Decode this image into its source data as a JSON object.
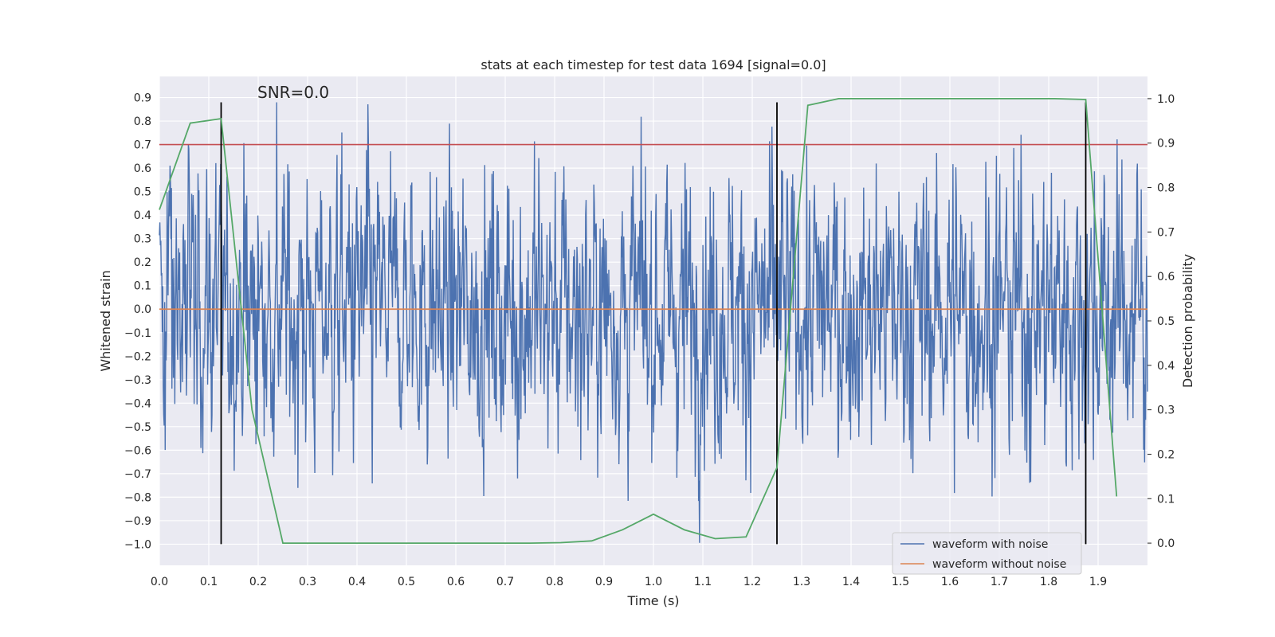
{
  "chart_data": {
    "type": "line",
    "title": "stats at each timestep for test data 1694 [signal=0.0]",
    "xlabel": "Time (s)",
    "ylabel": "Whitened strain",
    "y2label": "Detection probability",
    "xlim": [
      0.0,
      2.0
    ],
    "ylim": [
      -1.09,
      0.99
    ],
    "y2lim": [
      -0.05,
      1.05
    ],
    "xticks": [
      "0.0",
      "0.1",
      "0.2",
      "0.3",
      "0.4",
      "0.5",
      "0.6",
      "0.7",
      "0.8",
      "0.9",
      "1.0",
      "1.1",
      "1.2",
      "1.3",
      "1.4",
      "1.5",
      "1.6",
      "1.7",
      "1.8",
      "1.9"
    ],
    "yticks": [
      "0.9",
      "0.8",
      "0.7",
      "0.6",
      "0.5",
      "0.4",
      "0.3",
      "0.2",
      "0.1",
      "0.0",
      "−0.1",
      "−0.2",
      "−0.3",
      "−0.4",
      "−0.5",
      "−0.6",
      "−0.7",
      "−0.8",
      "−0.9",
      "−1.0"
    ],
    "y2ticks": [
      "1.0",
      "0.9",
      "0.8",
      "0.7",
      "0.6",
      "0.5",
      "0.4",
      "0.3",
      "0.2",
      "0.1",
      "0.0"
    ],
    "annotation": "SNR=0.0",
    "grid": true,
    "legend_position": "lower-right",
    "series": [
      {
        "name": "waveform with noise",
        "color": "#4c72b0",
        "axis": "left",
        "generated": true,
        "n_points": 2048,
        "amplitude_sigma": 0.27,
        "min": -1.0,
        "max": 0.88
      },
      {
        "name": "waveform without noise",
        "color": "#dd8452",
        "axis": "left",
        "x": [
          0.0,
          2.0
        ],
        "y": [
          0.0,
          0.0
        ]
      },
      {
        "color": "#c44e52",
        "axis": "left",
        "x": [
          0.0,
          2.0
        ],
        "y": [
          0.7,
          0.7
        ]
      },
      {
        "color": "#55a868",
        "axis": "right",
        "x": [
          0.0,
          0.0625,
          0.125,
          0.1875,
          0.25,
          0.3125,
          0.375,
          0.4375,
          0.5,
          0.5625,
          0.625,
          0.6875,
          0.75,
          0.8125,
          0.875,
          0.9375,
          1.0,
          1.0625,
          1.125,
          1.1875,
          1.25,
          1.3125,
          1.375,
          1.4375,
          1.5,
          1.5625,
          1.625,
          1.6875,
          1.75,
          1.8125,
          1.875,
          1.9375
        ],
        "y": [
          0.75,
          0.945,
          0.955,
          0.3,
          0.0,
          0.0,
          0.0,
          0.0,
          0.0,
          0.0,
          0.0,
          0.0,
          0.0,
          0.001,
          0.005,
          0.03,
          0.065,
          0.03,
          0.01,
          0.014,
          0.17,
          0.985,
          1.0,
          1.0,
          1.0,
          1.0,
          1.0,
          1.0,
          1.0,
          1.0,
          0.998,
          0.105
        ]
      }
    ],
    "vlines": {
      "color": "#000000",
      "x": [
        0.125,
        1.25,
        1.875
      ],
      "ymin": -1.0,
      "ymax": 0.88
    }
  }
}
